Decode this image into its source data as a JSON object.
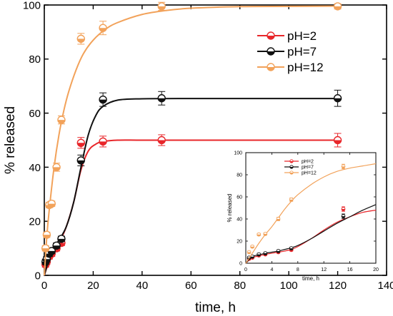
{
  "chart_data": [
    {
      "type": "scatter",
      "title": "",
      "xlabel": "time, h",
      "ylabel": "% released",
      "xlim": [
        0,
        140
      ],
      "ylim": [
        0,
        100
      ],
      "xticks": [
        0,
        20,
        40,
        60,
        80,
        100,
        120,
        140
      ],
      "yticks": [
        0,
        20,
        40,
        60,
        80,
        100
      ],
      "legend_position": "top-right",
      "error_bars": true,
      "fitted_curves": true,
      "series": [
        {
          "name": "pH=2",
          "color": "#e8262a",
          "x": [
            0.5,
            1,
            2,
            3,
            5,
            7,
            15,
            24,
            48,
            120
          ],
          "y": [
            4,
            5,
            7,
            8,
            10,
            12,
            49,
            49.5,
            50,
            50
          ],
          "err": [
            1,
            1,
            1,
            1,
            1,
            1,
            2,
            2,
            2,
            2.5
          ],
          "curve_x": [
            0,
            3,
            6,
            9,
            12,
            15,
            18,
            21,
            24,
            30,
            40,
            60,
            90,
            120
          ],
          "curve_y": [
            0,
            8,
            12,
            18,
            27,
            39,
            46,
            48.5,
            49.5,
            50,
            50,
            50,
            50,
            50
          ]
        },
        {
          "name": "pH=7",
          "color": "#111111",
          "x": [
            0.5,
            1,
            2,
            3,
            5,
            7,
            15,
            24,
            48,
            120
          ],
          "y": [
            5,
            6,
            8,
            9,
            11,
            13.5,
            42.5,
            65,
            65.5,
            65.5
          ],
          "err": [
            1,
            1,
            1,
            1,
            1,
            1,
            2,
            2.5,
            2.5,
            3
          ],
          "curve_x": [
            0,
            3,
            6,
            9,
            12,
            15,
            18,
            21,
            24,
            30,
            40,
            60,
            90,
            120
          ],
          "curve_y": [
            0,
            9,
            13,
            18,
            27,
            40,
            52,
            59,
            62.5,
            64.8,
            65.3,
            65.4,
            65.4,
            65.4
          ]
        },
        {
          "name": "pH=12",
          "color": "#f2a25a",
          "x": [
            0.5,
            1,
            2,
            3,
            5,
            7,
            15,
            24,
            48,
            120
          ],
          "y": [
            10,
            15,
            26,
            26.5,
            40,
            57.5,
            87.5,
            91.5,
            99.5,
            99.5
          ],
          "err": [
            1,
            1,
            1,
            1,
            1.5,
            1.5,
            2,
            2.5,
            1.5,
            1
          ],
          "curve_x": [
            0,
            1,
            2,
            4,
            6,
            8,
            10,
            13,
            16,
            20,
            25,
            30,
            40,
            50,
            60,
            80,
            100,
            120
          ],
          "curve_y": [
            0,
            14,
            24,
            40,
            52,
            61,
            68,
            76,
            82,
            87,
            91,
            93.5,
            96.5,
            98,
            98.8,
            99.4,
            99.5,
            99.6
          ]
        }
      ]
    },
    {
      "type": "scatter",
      "title": "",
      "xlabel": "time, h",
      "ylabel": "% released",
      "xlim": [
        0,
        20
      ],
      "ylim": [
        0,
        100
      ],
      "xticks": [
        0,
        4,
        8,
        12,
        16,
        20
      ],
      "yticks": [
        0,
        20,
        40,
        60,
        80,
        100
      ],
      "legend_position": "top-left",
      "error_bars": true,
      "fitted_curves": true,
      "series": [
        {
          "name": "pH=2",
          "color": "#e8262a",
          "x": [
            0.5,
            1,
            2,
            3,
            5,
            7,
            15
          ],
          "y": [
            4,
            5,
            7,
            8,
            10,
            12,
            49
          ],
          "err": [
            1,
            1,
            1,
            1,
            1,
            1,
            2
          ],
          "curve_x": [
            0,
            1,
            2,
            3,
            4,
            5,
            6,
            7,
            8,
            10,
            12,
            14,
            16,
            18,
            20
          ],
          "curve_y": [
            0,
            5,
            6.5,
            8,
            9,
            10,
            11,
            12.5,
            15,
            22,
            30,
            37,
            42,
            46,
            48
          ]
        },
        {
          "name": "pH=7",
          "color": "#111111",
          "x": [
            0.5,
            1,
            2,
            3,
            5,
            7,
            15
          ],
          "y": [
            5,
            6,
            8,
            9,
            11,
            13.5,
            42.5
          ],
          "err": [
            1,
            1,
            1,
            1,
            1,
            1,
            2
          ],
          "curve_x": [
            0,
            1,
            2,
            3,
            4,
            5,
            6,
            7,
            8,
            10,
            12,
            14,
            16,
            18,
            20
          ],
          "curve_y": [
            0,
            6,
            7.5,
            9,
            10,
            11,
            12.5,
            14,
            16,
            22,
            29,
            36,
            42,
            48,
            53
          ]
        },
        {
          "name": "pH=12",
          "color": "#f2a25a",
          "x": [
            0.5,
            1,
            2,
            3,
            5,
            7,
            15
          ],
          "y": [
            10,
            15,
            26,
            26.5,
            40,
            57.5,
            87.5
          ],
          "err": [
            1,
            1,
            1,
            1,
            1.5,
            1.5,
            2
          ],
          "curve_x": [
            0,
            1,
            2,
            3,
            4,
            5,
            6,
            7,
            8,
            10,
            12,
            14,
            16,
            18,
            20
          ],
          "curve_y": [
            0,
            9,
            18,
            26,
            33,
            41,
            49,
            56,
            62,
            71,
            78,
            83,
            86,
            88,
            90
          ]
        }
      ]
    }
  ]
}
